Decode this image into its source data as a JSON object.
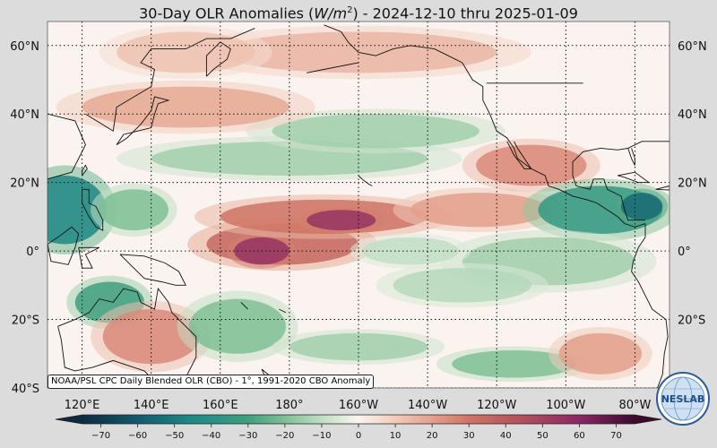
{
  "title": {
    "prefix": "30-Day OLR Anomalies (",
    "unit_base": "W/m",
    "unit_exp": "2",
    "suffix": ") - 2024-12-10 thru 2025-01-09"
  },
  "map": {
    "lon_range": [
      110,
      290
    ],
    "lat_range": [
      -40,
      67
    ],
    "lat_labels": [
      {
        "lat": 60,
        "text": "60°N"
      },
      {
        "lat": 40,
        "text": "40°N"
      },
      {
        "lat": 20,
        "text": "20°N"
      },
      {
        "lat": 0,
        "text": "0°"
      },
      {
        "lat": -20,
        "text": "20°S"
      },
      {
        "lat": -40,
        "text": "40°S"
      }
    ],
    "lon_labels": [
      {
        "lon": 120,
        "text": "120°E"
      },
      {
        "lon": 140,
        "text": "140°E"
      },
      {
        "lon": 160,
        "text": "160°E"
      },
      {
        "lon": 180,
        "text": "180°"
      },
      {
        "lon": 200,
        "text": "160°W"
      },
      {
        "lon": 220,
        "text": "140°W"
      },
      {
        "lon": 240,
        "text": "120°W"
      },
      {
        "lon": 260,
        "text": "100°W"
      },
      {
        "lon": 280,
        "text": "80°W"
      }
    ],
    "anomaly_blobs": [
      {
        "lon": 115,
        "lat": 12,
        "rlon": 12,
        "rlat": 10,
        "value": -45
      },
      {
        "lon": 135,
        "lat": 12,
        "rlon": 10,
        "rlat": 6,
        "value": -20
      },
      {
        "lon": 128,
        "lat": -15,
        "rlon": 10,
        "rlat": 6,
        "value": -30
      },
      {
        "lon": 140,
        "lat": -25,
        "rlon": 14,
        "rlat": 8,
        "value": 25
      },
      {
        "lon": 165,
        "lat": -22,
        "rlon": 14,
        "rlat": 8,
        "value": -20
      },
      {
        "lon": 178,
        "lat": 2,
        "rlon": 22,
        "rlat": 6,
        "value": 35
      },
      {
        "lon": 172,
        "lat": 0,
        "rlon": 8,
        "rlat": 4,
        "value": 55
      },
      {
        "lon": 190,
        "lat": 10,
        "rlon": 30,
        "rlat": 5,
        "value": 30
      },
      {
        "lon": 195,
        "lat": 9,
        "rlon": 10,
        "rlat": 3,
        "value": 55
      },
      {
        "lon": 235,
        "lat": 12,
        "rlon": 20,
        "rlat": 5,
        "value": 20
      },
      {
        "lon": 250,
        "lat": 25,
        "rlon": 16,
        "rlat": 6,
        "value": 25
      },
      {
        "lon": 180,
        "lat": 27,
        "rlon": 40,
        "rlat": 5,
        "value": -15
      },
      {
        "lon": 205,
        "lat": 35,
        "rlon": 30,
        "rlat": 5,
        "value": -15
      },
      {
        "lon": 150,
        "lat": 42,
        "rlon": 30,
        "rlat": 6,
        "value": 18
      },
      {
        "lon": 270,
        "lat": 12,
        "rlon": 18,
        "rlat": 7,
        "value": -35
      },
      {
        "lon": 282,
        "lat": 13,
        "rlon": 6,
        "rlat": 4,
        "value": -55
      },
      {
        "lon": 255,
        "lat": -3,
        "rlon": 25,
        "rlat": 7,
        "value": -15
      },
      {
        "lon": 230,
        "lat": -10,
        "rlon": 20,
        "rlat": 5,
        "value": -12
      },
      {
        "lon": 200,
        "lat": -28,
        "rlon": 20,
        "rlat": 4,
        "value": -15
      },
      {
        "lon": 245,
        "lat": -33,
        "rlon": 18,
        "rlat": 4,
        "value": -20
      },
      {
        "lon": 200,
        "lat": 58,
        "rlon": 40,
        "rlat": 6,
        "value": 15
      },
      {
        "lon": 150,
        "lat": 58,
        "rlon": 20,
        "rlat": 6,
        "value": 12
      },
      {
        "lon": 270,
        "lat": -30,
        "rlon": 12,
        "rlat": 6,
        "value": 20
      },
      {
        "lon": 215,
        "lat": 0,
        "rlon": 14,
        "rlat": 4,
        "value": -10
      }
    ]
  },
  "credit": "NOAA/PSL CPC Daily Blended OLR (CBO) - 1°, 1991-2020 CBO Anomaly",
  "colorbar": {
    "range": [
      -75,
      75
    ],
    "ticks": [
      -70,
      -60,
      -50,
      -40,
      -30,
      -20,
      -10,
      0,
      10,
      20,
      30,
      40,
      50,
      60,
      70
    ],
    "tick_labels": [
      "−70",
      "−60",
      "−50",
      "−40",
      "−30",
      "−20",
      "−10",
      "0",
      "10",
      "20",
      "30",
      "40",
      "50",
      "60",
      "70"
    ],
    "colors": [
      {
        "v": -75,
        "c": "#0d2b3e"
      },
      {
        "v": -60,
        "c": "#135a6b"
      },
      {
        "v": -45,
        "c": "#1f8a85"
      },
      {
        "v": -30,
        "c": "#3f9f7f"
      },
      {
        "v": -20,
        "c": "#7fbf95"
      },
      {
        "v": -10,
        "c": "#c2dec5"
      },
      {
        "v": 0,
        "c": "#fbf5f1"
      },
      {
        "v": 10,
        "c": "#f1cbb9"
      },
      {
        "v": 20,
        "c": "#e3a08c"
      },
      {
        "v": 30,
        "c": "#cf7464"
      },
      {
        "v": 45,
        "c": "#b04f5c"
      },
      {
        "v": 60,
        "c": "#8a2766"
      },
      {
        "v": 75,
        "c": "#3b0a2c"
      }
    ]
  },
  "logo": {
    "text": "NESLAB",
    "icon": "noaa-neslab-globe-logo"
  }
}
